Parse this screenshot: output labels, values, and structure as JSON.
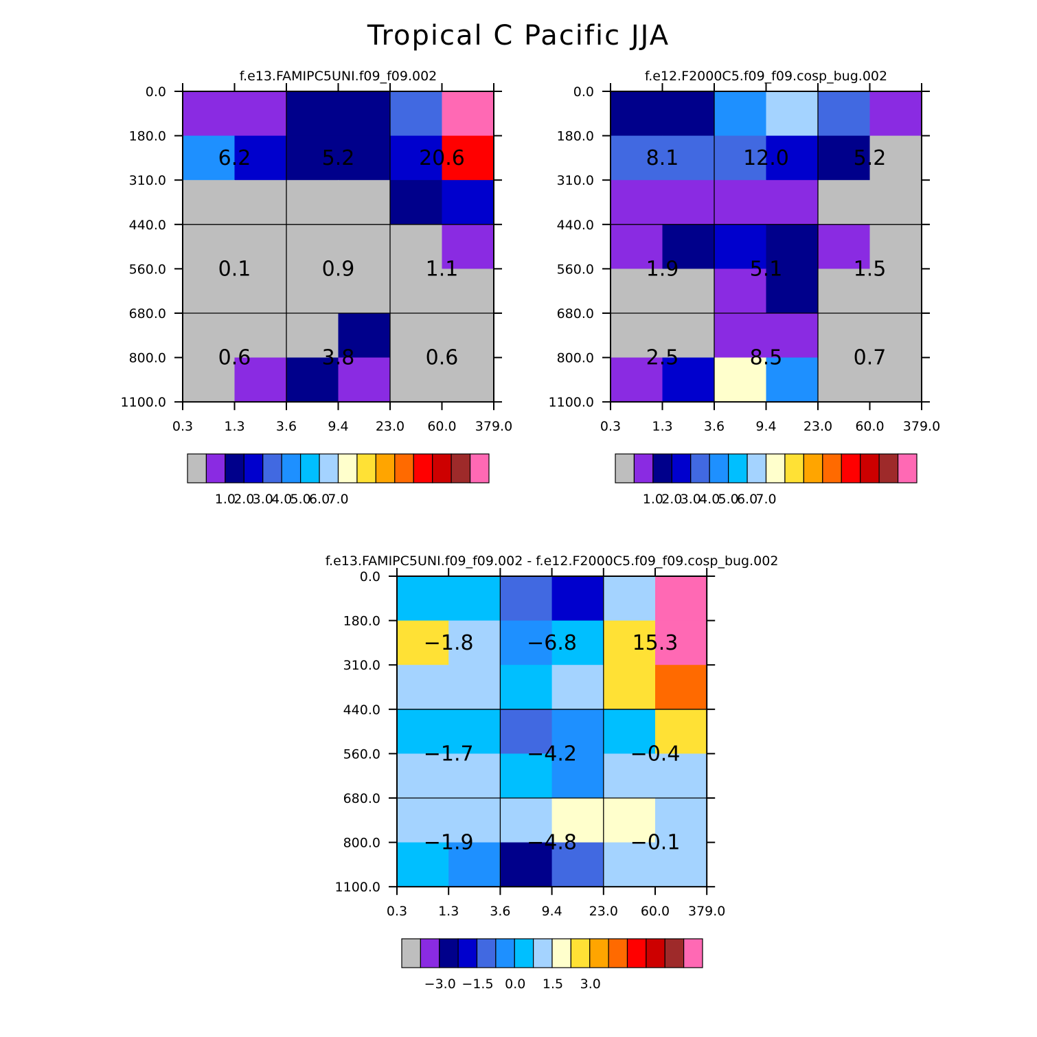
{
  "figure": {
    "title": "Tropical C Pacific JJA"
  },
  "colorbars": {
    "abs": {
      "colors": [
        "#BEBEBE",
        "#8A2BE2",
        "#00008B",
        "#0000CD",
        "#4169E1",
        "#1E90FF",
        "#00BFFF",
        "#A4D3FF",
        "#FFFFCC",
        "#FFE135",
        "#FFA500",
        "#FF6A00",
        "#FF0000",
        "#CD0000",
        "#9E2A2A",
        "#FF69B4"
      ],
      "labels": [
        "1.0",
        "2.0",
        "3.0",
        "4.0",
        "5.0",
        "6.0",
        "7.0"
      ]
    },
    "diff": {
      "colors": [
        "#BEBEBE",
        "#8A2BE2",
        "#00008B",
        "#0000CD",
        "#4169E1",
        "#1E90FF",
        "#00BFFF",
        "#A4D3FF",
        "#FFFFCC",
        "#FFE135",
        "#FFA500",
        "#FF6A00",
        "#FF0000",
        "#CD0000",
        "#9E2A2A",
        "#FF69B4"
      ],
      "labels": [
        "-3.0",
        "-1.5",
        "0.0",
        "1.5",
        "3.0"
      ]
    }
  },
  "chart_data": [
    {
      "type": "heatmap",
      "title": "f.e13.FAMIPC5UNI.f09_f09.002",
      "x_ticks": [
        "0.3",
        "1.3",
        "3.6",
        "9.4",
        "23.0",
        "60.0",
        "379.0"
      ],
      "y_ticks": [
        "0.0",
        "180.0",
        "310.0",
        "440.0",
        "560.0",
        "680.0",
        "800.0",
        "1100.0"
      ],
      "grid_rows": 7,
      "grid_cols": 6,
      "cell_color_index": [
        [
          1,
          1,
          2,
          2,
          4,
          15
        ],
        [
          5,
          3,
          2,
          2,
          3,
          12
        ],
        [
          0,
          0,
          0,
          0,
          2,
          3
        ],
        [
          0,
          0,
          0,
          0,
          0,
          1
        ],
        [
          0,
          0,
          0,
          0,
          0,
          0
        ],
        [
          0,
          0,
          0,
          2,
          0,
          0
        ],
        [
          0,
          1,
          2,
          1,
          0,
          0
        ]
      ],
      "box_values": [
        [
          "6.2",
          "5.2",
          "20.6"
        ],
        [
          "0.1",
          "0.9",
          "1.1"
        ],
        [
          "0.6",
          "3.8",
          "0.6"
        ]
      ],
      "colorbar": "abs"
    },
    {
      "type": "heatmap",
      "title": "f.e12.F2000C5.f09_f09.cosp_bug.002",
      "x_ticks": [
        "0.3",
        "1.3",
        "3.6",
        "9.4",
        "23.0",
        "60.0",
        "379.0"
      ],
      "y_ticks": [
        "0.0",
        "180.0",
        "310.0",
        "440.0",
        "560.0",
        "680.0",
        "800.0",
        "1100.0"
      ],
      "grid_rows": 7,
      "grid_cols": 6,
      "cell_color_index": [
        [
          2,
          2,
          5,
          7,
          4,
          1
        ],
        [
          4,
          4,
          4,
          3,
          2,
          0
        ],
        [
          1,
          1,
          1,
          1,
          0,
          0
        ],
        [
          1,
          2,
          3,
          2,
          1,
          0
        ],
        [
          0,
          0,
          1,
          2,
          0,
          0
        ],
        [
          0,
          0,
          1,
          1,
          0,
          0
        ],
        [
          1,
          3,
          8,
          5,
          0,
          0
        ]
      ],
      "box_values": [
        [
          "8.1",
          "12.0",
          "5.2"
        ],
        [
          "1.9",
          "5.1",
          "1.5"
        ],
        [
          "2.5",
          "8.5",
          "0.7"
        ]
      ],
      "colorbar": "abs"
    },
    {
      "type": "heatmap",
      "title": "f.e13.FAMIPC5UNI.f09_f09.002 - f.e12.F2000C5.f09_f09.cosp_bug.002",
      "x_ticks": [
        "0.3",
        "1.3",
        "3.6",
        "9.4",
        "23.0",
        "60.0",
        "379.0"
      ],
      "y_ticks": [
        "0.0",
        "180.0",
        "310.0",
        "440.0",
        "560.0",
        "680.0",
        "800.0",
        "1100.0"
      ],
      "grid_rows": 7,
      "grid_cols": 6,
      "cell_color_index": [
        [
          6,
          6,
          4,
          3,
          7,
          15
        ],
        [
          9,
          7,
          5,
          6,
          9,
          15
        ],
        [
          7,
          7,
          6,
          7,
          9,
          11
        ],
        [
          6,
          6,
          4,
          5,
          6,
          9
        ],
        [
          7,
          7,
          6,
          5,
          7,
          7
        ],
        [
          7,
          7,
          7,
          8,
          8,
          7
        ],
        [
          6,
          5,
          2,
          4,
          7,
          7
        ]
      ],
      "box_values": [
        [
          "-1.8",
          "-6.8",
          "15.3"
        ],
        [
          "-1.7",
          "-4.2",
          "-0.4"
        ],
        [
          "-1.9",
          "-4.8",
          "-0.1"
        ]
      ],
      "colorbar": "diff"
    }
  ]
}
